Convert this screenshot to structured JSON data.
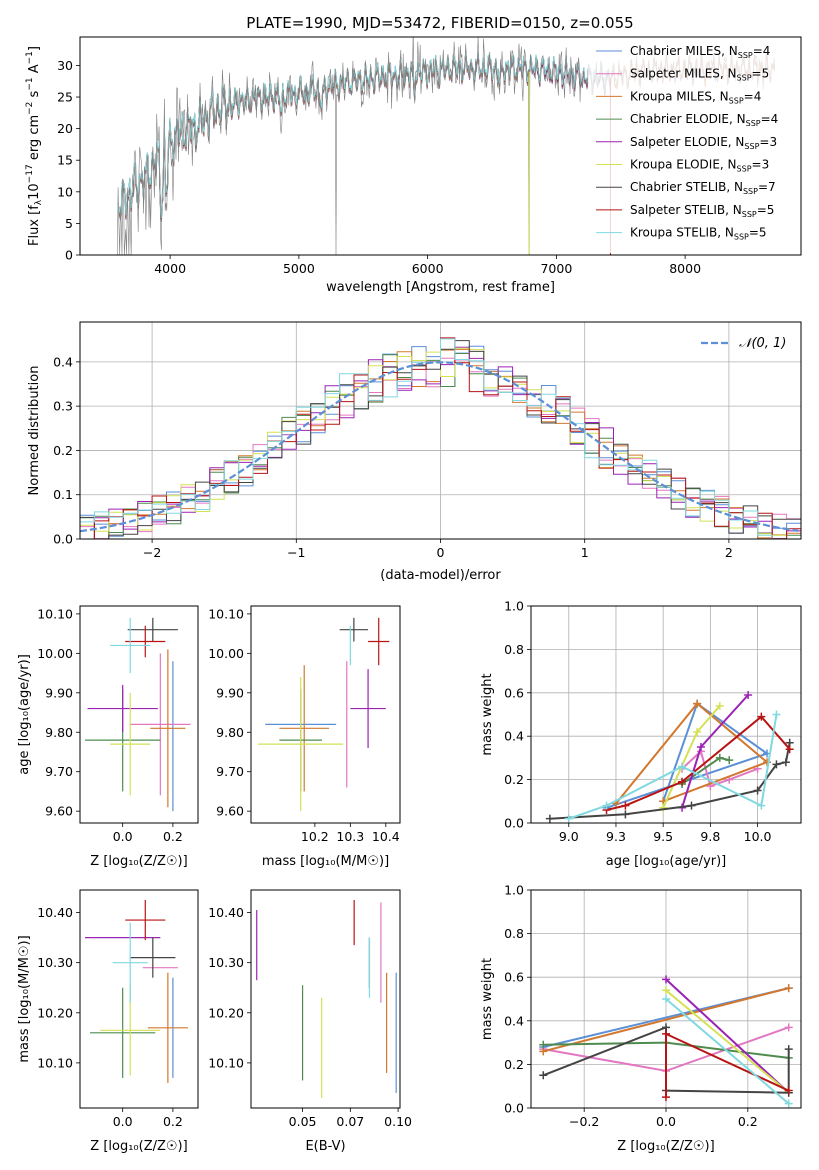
{
  "figure": {
    "title": "PLATE=1990, MJD=53472, FIBERID=0150, z=0.055"
  },
  "colors": {
    "Chabrier MILES": "#5b8fd6",
    "Salpeter MILES": "#e377c2",
    "Kroupa MILES": "#d2782e",
    "Chabrier ELODIE": "#4f8b4f",
    "Salpeter ELODIE": "#9b22b5",
    "Kroupa ELODIE": "#d4e157",
    "Chabrier STELIB": "#444444",
    "Salpeter STELIB": "#b81414",
    "Kroupa STELIB": "#80d8e0",
    "data": "#808080"
  },
  "chart_data": [
    {
      "type": "line",
      "panel": "spectrum",
      "xlabel": "wavelength [Angstrom, rest frame]",
      "ylabel": "Flux [f_λ 10^-17 erg cm^-2 s^-1 A^-1]",
      "xlim": [
        3300,
        8900
      ],
      "ylim": [
        0,
        34.5
      ],
      "xticks": [
        4000,
        5000,
        6000,
        7000,
        8000
      ],
      "yticks": [
        0,
        5,
        10,
        15,
        20,
        25,
        30
      ],
      "legend_position": "upper right",
      "legend": [
        "Chabrier MILES, N_SSP=4",
        "Salpeter MILES, N_SSP=5",
        "Kroupa MILES, N_SSP=4",
        "Chabrier ELODIE, N_SSP=4",
        "Salpeter ELODIE, N_SSP=3",
        "Kroupa ELODIE, N_SSP=3",
        "Chabrier STELIB, N_SSP=7",
        "Salpeter STELIB, N_SSP=5",
        "Kroupa STELIB, N_SSP=5"
      ],
      "continuum": {
        "x": [
          3600,
          3700,
          3800,
          3900,
          4000,
          4100,
          4200,
          4300,
          4400,
          4600,
          4800,
          5000,
          5200,
          5400,
          5600,
          5800,
          6000,
          6200,
          6400,
          6600,
          6800,
          7000,
          7200,
          7400,
          7600,
          7800,
          8000,
          8200,
          8400,
          8600,
          8800
        ],
        "y": [
          8,
          10,
          12,
          15,
          18,
          19.5,
          20.5,
          22,
          23.5,
          24.5,
          25,
          25.5,
          26.5,
          27.5,
          28,
          28.5,
          29,
          29.5,
          29.5,
          29.5,
          29.5,
          29,
          28,
          28,
          29,
          29.5,
          29.5,
          29.5,
          29.5,
          29.5,
          30
        ]
      }
    },
    {
      "type": "line",
      "panel": "residual_histogram",
      "xlabel": "(data-model)/error",
      "ylabel": "Normed distribution",
      "xlim": [
        -2.5,
        2.5
      ],
      "ylim": [
        0,
        0.49
      ],
      "xticks": [
        -2,
        -1,
        0,
        1,
        2
      ],
      "yticks": [
        0.0,
        0.1,
        0.2,
        0.3,
        0.4
      ],
      "grid": true,
      "legend_position": "upper right",
      "legend": [
        "N(0,1)"
      ]
    },
    {
      "type": "scatter",
      "panel": "age_vs_Z",
      "xlabel": "Z [log10(Z/Z☉)]",
      "ylabel": "age [log10(age/yr)]",
      "xlim": [
        -0.17,
        0.3
      ],
      "ylim": [
        9.57,
        10.12
      ],
      "xticks": [
        0.0,
        0.2
      ],
      "yticks": [
        9.6,
        9.7,
        9.8,
        9.9,
        10.0,
        10.1
      ],
      "points": [
        {
          "model": "Chabrier MILES",
          "x": 0.2,
          "y": 9.79,
          "xerr": 0.0,
          "yerr": 0.19
        },
        {
          "model": "Salpeter MILES",
          "x": 0.15,
          "y": 9.82,
          "xerr": 0.12,
          "yerr": 0.18
        },
        {
          "model": "Kroupa MILES",
          "x": 0.18,
          "y": 9.81,
          "xerr": 0.07,
          "yerr": 0.2
        },
        {
          "model": "Chabrier ELODIE",
          "x": 0.0,
          "y": 9.78,
          "xerr": 0.15,
          "yerr": 0.13
        },
        {
          "model": "Salpeter ELODIE",
          "x": 0.0,
          "y": 9.86,
          "xerr": 0.14,
          "yerr": 0.06
        },
        {
          "model": "Kroupa ELODIE",
          "x": 0.03,
          "y": 9.77,
          "xerr": 0.08,
          "yerr": 0.13
        },
        {
          "model": "Chabrier STELIB",
          "x": 0.12,
          "y": 10.06,
          "xerr": 0.1,
          "yerr": 0.03
        },
        {
          "model": "Salpeter STELIB",
          "x": 0.09,
          "y": 10.03,
          "xerr": 0.08,
          "yerr": 0.04
        },
        {
          "model": "Kroupa STELIB",
          "x": 0.03,
          "y": 10.02,
          "xerr": 0.08,
          "yerr": 0.07
        }
      ]
    },
    {
      "type": "scatter",
      "panel": "age_vs_mass",
      "xlabel": "mass [log10(M/M☉)]",
      "ylabel": "",
      "xlim": [
        10.02,
        10.44
      ],
      "ylim": [
        9.57,
        10.12
      ],
      "xticks": [
        10.2,
        10.3,
        10.4
      ],
      "yticks": [
        9.6,
        9.7,
        9.8,
        9.9,
        10.0,
        10.1
      ],
      "points": [
        {
          "model": "Chabrier MILES",
          "x": 10.16,
          "y": 9.82,
          "xerr": 0.1,
          "yerr": 0.0
        },
        {
          "model": "Salpeter MILES",
          "x": 10.29,
          "y": 9.82,
          "xerr": 0.0,
          "yerr": 0.16
        },
        {
          "model": "Kroupa MILES",
          "x": 10.17,
          "y": 9.81,
          "xerr": 0.07,
          "yerr": 0.16
        },
        {
          "model": "Chabrier ELODIE",
          "x": 10.16,
          "y": 9.78,
          "xerr": 0.06,
          "yerr": 0.13
        },
        {
          "model": "Salpeter ELODIE",
          "x": 10.35,
          "y": 9.86,
          "xerr": 0.05,
          "yerr": 0.1
        },
        {
          "model": "Kroupa ELODIE",
          "x": 10.16,
          "y": 9.77,
          "xerr": 0.12,
          "yerr": 0.17
        },
        {
          "model": "Chabrier STELIB",
          "x": 10.31,
          "y": 10.06,
          "xerr": 0.04,
          "yerr": 0.03
        },
        {
          "model": "Salpeter STELIB",
          "x": 10.38,
          "y": 10.03,
          "xerr": 0.03,
          "yerr": 0.06
        },
        {
          "model": "Kroupa STELIB",
          "x": 10.3,
          "y": 10.02,
          "xerr": 0.0,
          "yerr": 0.05
        }
      ]
    },
    {
      "type": "line",
      "panel": "mass_weight_vs_age",
      "xlabel": "age [log10(age/yr)]",
      "ylabel": "mass weight",
      "xlim": [
        8.8,
        10.23
      ],
      "ylim": [
        0.0,
        1.0
      ],
      "xticks": [
        9.0,
        9.25,
        9.5,
        9.75,
        10.0
      ],
      "yticks": [
        0.0,
        0.2,
        0.4,
        0.6,
        0.8,
        1.0
      ],
      "grid": true,
      "series": [
        {
          "name": "Chabrier MILES",
          "x": [
            9.2,
            10.05,
            9.68,
            9.5
          ],
          "y": [
            0.07,
            0.32,
            0.55,
            0.1
          ]
        },
        {
          "name": "Salpeter MILES",
          "x": [
            9.6,
            9.7,
            9.75,
            9.85,
            10.0
          ],
          "y": [
            0.25,
            0.33,
            0.17,
            0.2,
            0.25
          ]
        },
        {
          "name": "Kroupa MILES",
          "x": [
            9.25,
            9.68,
            10.05,
            9.5
          ],
          "y": [
            0.09,
            0.55,
            0.28,
            0.1
          ]
        },
        {
          "name": "Chabrier ELODIE",
          "x": [
            9.6,
            9.8,
            9.85
          ],
          "y": [
            0.18,
            0.3,
            0.29
          ]
        },
        {
          "name": "Salpeter ELODIE",
          "x": [
            9.6,
            9.7,
            9.95
          ],
          "y": [
            0.07,
            0.35,
            0.59
          ]
        },
        {
          "name": "Kroupa ELODIE",
          "x": [
            9.5,
            9.68,
            9.8
          ],
          "y": [
            0.07,
            0.42,
            0.54
          ]
        },
        {
          "name": "Chabrier STELIB",
          "x": [
            8.9,
            9.3,
            9.65,
            10.0,
            10.1,
            10.15,
            10.17
          ],
          "y": [
            0.02,
            0.04,
            0.08,
            0.15,
            0.27,
            0.28,
            0.37
          ]
        },
        {
          "name": "Salpeter STELIB",
          "x": [
            9.2,
            9.3,
            9.6,
            10.02,
            10.17
          ],
          "y": [
            0.06,
            0.08,
            0.19,
            0.49,
            0.34
          ]
        },
        {
          "name": "Kroupa STELIB",
          "x": [
            9.0,
            9.2,
            9.6,
            10.02,
            10.1
          ],
          "y": [
            0.02,
            0.08,
            0.26,
            0.08,
            0.5
          ]
        }
      ]
    },
    {
      "type": "scatter",
      "panel": "mass_vs_Z",
      "xlabel": "Z [log10(Z/Z☉)]",
      "ylabel": "mass [log10(M/M☉)]",
      "xlim": [
        -0.17,
        0.3
      ],
      "ylim": [
        10.01,
        10.445
      ],
      "xticks": [
        0.0,
        0.2
      ],
      "yticks": [
        10.1,
        10.2,
        10.3,
        10.4
      ],
      "points": [
        {
          "model": "Chabrier MILES",
          "x": 0.2,
          "y": 10.17,
          "xerr": 0.0,
          "yerr": 0.1
        },
        {
          "model": "Salpeter MILES",
          "x": 0.15,
          "y": 10.29,
          "xerr": 0.07,
          "yerr": 0.0
        },
        {
          "model": "Kroupa MILES",
          "x": 0.18,
          "y": 10.17,
          "xerr": 0.08,
          "yerr": 0.11
        },
        {
          "model": "Chabrier ELODIE",
          "x": 0.0,
          "y": 10.16,
          "xerr": 0.13,
          "yerr": 0.09
        },
        {
          "model": "Salpeter ELODIE",
          "x": 0.0,
          "y": 10.35,
          "xerr": 0.15,
          "yerr": 0.0
        },
        {
          "model": "Kroupa ELODIE",
          "x": 0.03,
          "y": 10.165,
          "xerr": 0.12,
          "yerr": 0.09
        },
        {
          "model": "Chabrier STELIB",
          "x": 0.12,
          "y": 10.31,
          "xerr": 0.09,
          "yerr": 0.04
        },
        {
          "model": "Salpeter STELIB",
          "x": 0.09,
          "y": 10.385,
          "xerr": 0.08,
          "yerr": 0.04
        },
        {
          "model": "Kroupa STELIB",
          "x": 0.03,
          "y": 10.3,
          "xerr": 0.07,
          "yerr": 0.08
        }
      ]
    },
    {
      "type": "scatter",
      "panel": "mass_vs_EBV",
      "xlabel": "E(B-V)",
      "ylabel": "",
      "xlim": [
        0.023,
        0.101
      ],
      "ylim": [
        10.01,
        10.445
      ],
      "xticks": [
        0.05,
        0.075,
        0.1
      ],
      "yticks": [
        10.1,
        10.2,
        10.3,
        10.4
      ],
      "points": [
        {
          "model": "Chabrier MILES",
          "x": 0.099,
          "y": 10.16,
          "yerr": 0.12
        },
        {
          "model": "Salpeter MILES",
          "x": 0.091,
          "y": 10.32,
          "yerr": 0.1
        },
        {
          "model": "Kroupa MILES",
          "x": 0.094,
          "y": 10.18,
          "yerr": 0.1
        },
        {
          "model": "Chabrier ELODIE",
          "x": 0.05,
          "y": 10.16,
          "yerr": 0.095
        },
        {
          "model": "Salpeter ELODIE",
          "x": 0.026,
          "y": 10.335,
          "yerr": 0.07
        },
        {
          "model": "Kroupa ELODIE",
          "x": 0.06,
          "y": 10.13,
          "yerr": 0.1
        },
        {
          "model": "Chabrier STELIB",
          "x": 0.085,
          "y": 10.3,
          "yerr": 0.05
        },
        {
          "model": "Salpeter STELIB",
          "x": 0.077,
          "y": 10.38,
          "yerr": 0.045
        },
        {
          "model": "Kroupa STELIB",
          "x": 0.085,
          "y": 10.29,
          "yerr": 0.06
        }
      ]
    },
    {
      "type": "line",
      "panel": "mass_weight_vs_Z",
      "xlabel": "Z [log10(Z/Z☉)]",
      "ylabel": "mass weight",
      "xlim": [
        -0.33,
        0.33
      ],
      "ylim": [
        0.0,
        1.0
      ],
      "xticks": [
        -0.2,
        0.0,
        0.2
      ],
      "yticks": [
        0.0,
        0.2,
        0.4,
        0.6,
        0.8,
        1.0
      ],
      "grid": true,
      "series": [
        {
          "name": "Chabrier MILES",
          "x": [
            -0.3,
            0.3
          ],
          "y": [
            0.28,
            0.55
          ]
        },
        {
          "name": "Salpeter MILES",
          "x": [
            -0.3,
            0.0,
            0.3
          ],
          "y": [
            0.27,
            0.17,
            0.37
          ]
        },
        {
          "name": "Kroupa MILES",
          "x": [
            -0.3,
            0.3
          ],
          "y": [
            0.26,
            0.55
          ]
        },
        {
          "name": "Chabrier ELODIE",
          "x": [
            -0.3,
            0.0,
            0.3
          ],
          "y": [
            0.29,
            0.3,
            0.23
          ]
        },
        {
          "name": "Salpeter ELODIE",
          "x": [
            0.0,
            0.3
          ],
          "y": [
            0.59,
            0.07
          ]
        },
        {
          "name": "Kroupa ELODIE",
          "x": [
            0.0,
            0.3
          ],
          "y": [
            0.54,
            0.07
          ]
        },
        {
          "name": "Chabrier STELIB",
          "x": [
            -0.3,
            0.0,
            0.0,
            0.3,
            0.3
          ],
          "y": [
            0.15,
            0.37,
            0.08,
            0.07,
            0.27
          ]
        },
        {
          "name": "Salpeter STELIB",
          "x": [
            0.0,
            0.0,
            0.3
          ],
          "y": [
            0.05,
            0.34,
            0.08
          ]
        },
        {
          "name": "Kroupa STELIB",
          "x": [
            0.0,
            0.3
          ],
          "y": [
            0.5,
            0.02
          ]
        }
      ]
    }
  ]
}
